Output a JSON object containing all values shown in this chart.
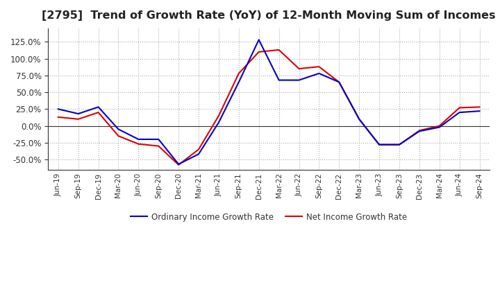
{
  "title": "[2795]  Trend of Growth Rate (YoY) of 12-Month Moving Sum of Incomes",
  "title_fontsize": 11.5,
  "ylim": [
    -65,
    145
  ],
  "yticks": [
    -50,
    -25,
    0,
    25,
    50,
    75,
    100,
    125
  ],
  "legend_labels": [
    "Ordinary Income Growth Rate",
    "Net Income Growth Rate"
  ],
  "line_colors": [
    "#0000cc",
    "#dd0000"
  ],
  "background_color": "#ffffff",
  "plot_bg_color": "#ffffff",
  "grid_color": "#aaaaaa",
  "x_labels": [
    "Jun-19",
    "Sep-19",
    "Dec-19",
    "Mar-20",
    "Jun-20",
    "Sep-20",
    "Dec-20",
    "Mar-21",
    "Jun-21",
    "Sep-21",
    "Dec-21",
    "Mar-22",
    "Jun-22",
    "Sep-22",
    "Dec-22",
    "Mar-23",
    "Jun-23",
    "Sep-23",
    "Dec-23",
    "Mar-24",
    "Jun-24",
    "Sep-24"
  ],
  "ordinary_income_growth": [
    25,
    18,
    28,
    -5,
    -20,
    -20,
    -57,
    -42,
    5,
    65,
    128,
    68,
    68,
    78,
    65,
    10,
    -28,
    -28,
    -8,
    -2,
    20,
    22
  ],
  "net_income_growth": [
    13,
    10,
    20,
    -15,
    -27,
    -30,
    -58,
    -35,
    15,
    78,
    110,
    113,
    85,
    88,
    65,
    10,
    -28,
    -28,
    -7,
    0,
    27,
    28
  ]
}
